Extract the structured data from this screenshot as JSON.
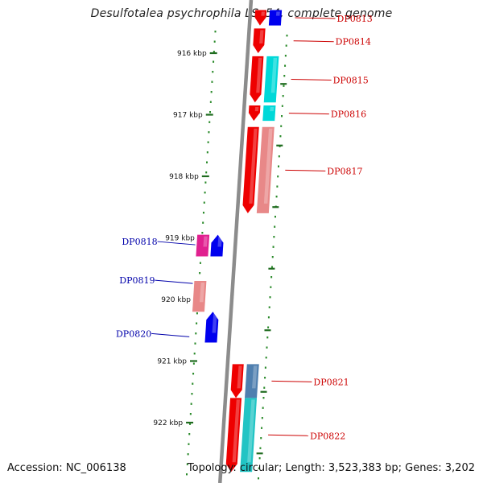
{
  "title": "Desulfotalea psychrophila LSv54, complete genome",
  "footer": {
    "accession": "Accession: NC_006138",
    "summary": "Topology: circular; Length: 3,523,383 bp; Genes: 3,202"
  },
  "colors": {
    "forward_label": "#cc0000",
    "reverse_label": "#0000aa",
    "backbone": "#8c8c8c",
    "tick": "#1f6b1f",
    "red": "#ee0000",
    "cyan": "#00d8d8",
    "salmon": "#e88888",
    "blue": "#0000ee",
    "magenta": "#e0208f",
    "steel": "#4f7faf",
    "teal": "#22c4c4"
  },
  "ticks": [
    {
      "kbp": 916,
      "label": "916 kbp"
    },
    {
      "kbp": 917,
      "label": "917 kbp"
    },
    {
      "kbp": 918,
      "label": "918 kbp"
    },
    {
      "kbp": 919,
      "label": "919 kbp"
    },
    {
      "kbp": 920,
      "label": "920 kbp"
    },
    {
      "kbp": 921,
      "label": "921 kbp"
    },
    {
      "kbp": 922,
      "label": "922 kbp"
    }
  ],
  "genes": [
    {
      "label": "DP0813",
      "strand": "forward",
      "start_kbp": 915.3,
      "end_kbp": 915.55
    },
    {
      "label": "DP0814",
      "strand": "forward",
      "start_kbp": 915.6,
      "end_kbp": 916.0
    },
    {
      "label": "DP0815",
      "strand": "forward",
      "start_kbp": 916.05,
      "end_kbp": 916.8
    },
    {
      "label": "DP0816",
      "strand": "forward",
      "start_kbp": 916.85,
      "end_kbp": 917.1
    },
    {
      "label": "DP0817",
      "strand": "forward",
      "start_kbp": 917.2,
      "end_kbp": 918.6
    },
    {
      "label": "DP0818",
      "strand": "reverse",
      "start_kbp": 918.95,
      "end_kbp": 919.3
    },
    {
      "label": "DP0819",
      "strand": "reverse",
      "start_kbp": 919.7,
      "end_kbp": 920.2
    },
    {
      "label": "DP0820",
      "strand": "reverse",
      "start_kbp": 920.2,
      "end_kbp": 920.7
    },
    {
      "label": "DP0821",
      "strand": "forward",
      "start_kbp": 921.05,
      "end_kbp": 921.6
    },
    {
      "label": "DP0822",
      "strand": "forward",
      "start_kbp": 921.6,
      "end_kbp": 922.8
    }
  ],
  "feature_bands": [
    {
      "gene": "DP0813",
      "colors": [
        "red",
        "blue"
      ]
    },
    {
      "gene": "DP0814",
      "colors": [
        "red"
      ]
    },
    {
      "gene": "DP0815",
      "colors": [
        "red",
        "cyan"
      ]
    },
    {
      "gene": "DP0816",
      "colors": [
        "red",
        "cyan"
      ]
    },
    {
      "gene": "DP0817",
      "colors": [
        "red",
        "salmon"
      ]
    },
    {
      "gene": "DP0818",
      "colors": [
        "magenta",
        "blue"
      ]
    },
    {
      "gene": "DP0819",
      "colors": [
        "salmon"
      ]
    },
    {
      "gene": "DP0820",
      "colors": [
        "blue"
      ]
    },
    {
      "gene": "DP0821",
      "colors": [
        "red",
        "steel"
      ]
    },
    {
      "gene": "DP0822",
      "colors": [
        "red",
        "teal"
      ]
    }
  ]
}
